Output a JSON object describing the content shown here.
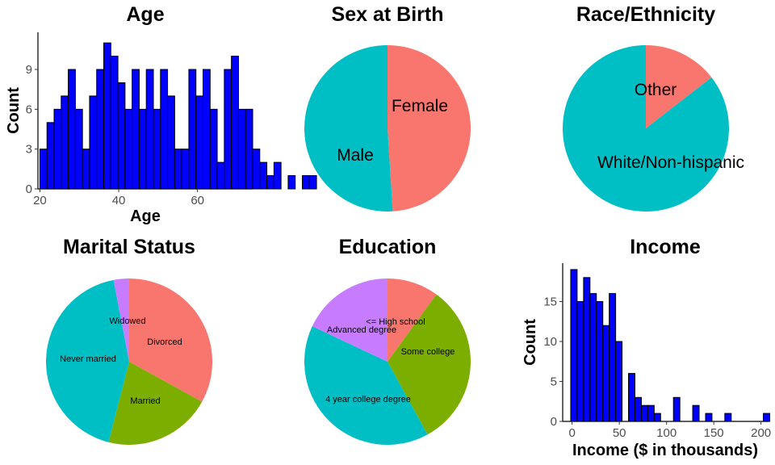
{
  "chart_data": [
    {
      "type": "bar",
      "title": "Age",
      "xlabel": "Age",
      "ylabel": "Count",
      "histogram": true,
      "bin_start": 20,
      "bin_width": 1.8,
      "values": [
        3,
        5,
        6,
        7,
        9,
        6,
        3,
        7,
        9,
        11,
        10,
        8,
        6,
        9,
        6,
        9,
        6,
        9,
        7,
        3,
        3,
        9,
        7,
        9,
        6,
        2,
        9,
        10,
        6,
        6,
        3,
        2,
        1,
        2,
        0,
        1,
        0,
        1,
        1
      ],
      "xlim": [
        19.5,
        74
      ],
      "ylim": [
        0,
        11.8
      ],
      "xticks": [
        20,
        40,
        60
      ],
      "yticks": [
        0,
        3,
        6,
        9
      ],
      "bar_color": "#0000ff"
    },
    {
      "type": "pie",
      "title": "Sex at Birth",
      "slices": [
        {
          "label": "Female",
          "value": 0.49,
          "color": "#f8766d"
        },
        {
          "label": "Male",
          "value": 0.51,
          "color": "#00bfc4"
        }
      ]
    },
    {
      "type": "pie",
      "title": "Race/Ethnicity",
      "slices": [
        {
          "label": "Other",
          "value": 0.145,
          "color": "#f8766d"
        },
        {
          "label": "White/Non-hispanic",
          "value": 0.855,
          "color": "#00bfc4"
        }
      ]
    },
    {
      "type": "pie",
      "title": "Marital Status",
      "slices": [
        {
          "label": "Divorced",
          "value": 0.33,
          "color": "#f8766d"
        },
        {
          "label": "Married",
          "value": 0.21,
          "color": "#7cae00"
        },
        {
          "label": "Never married",
          "value": 0.43,
          "color": "#00bfc4"
        },
        {
          "label": "Widowed",
          "value": 0.03,
          "color": "#c77cff"
        }
      ]
    },
    {
      "type": "pie",
      "title": "Education",
      "slices": [
        {
          "label": "<= High school",
          "value": 0.1,
          "color": "#f8766d"
        },
        {
          "label": "Some college",
          "value": 0.32,
          "color": "#7cae00"
        },
        {
          "label": "4 year college degree",
          "value": 0.4,
          "color": "#00bfc4"
        },
        {
          "label": "Advanced degree",
          "value": 0.18,
          "color": "#c77cff"
        }
      ]
    },
    {
      "type": "bar",
      "title": "Income",
      "xlabel": "Income ($ in thousands)",
      "ylabel": "Count",
      "histogram": true,
      "bin_start": -1.5,
      "bin_width": 6.8,
      "values": [
        19,
        15,
        18,
        16,
        15,
        12,
        16,
        10,
        0,
        6,
        3,
        2,
        2,
        1,
        0,
        0,
        3,
        0,
        0,
        2,
        0,
        1,
        0,
        0,
        1,
        0,
        0,
        0,
        0,
        0,
        1
      ],
      "xlim": [
        -10,
        208
      ],
      "ylim": [
        0,
        19.8
      ],
      "xticks": [
        0,
        50,
        100,
        150,
        200
      ],
      "yticks": [
        0,
        5,
        10,
        15
      ],
      "bar_color": "#0000ff"
    }
  ]
}
